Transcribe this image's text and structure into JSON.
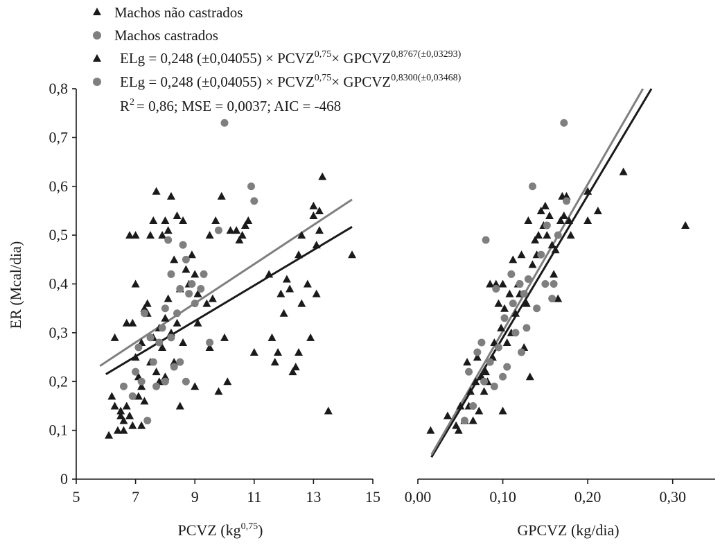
{
  "legend": {
    "entries": [
      {
        "marker": "triangle",
        "color": "#1a1a1a",
        "label": "Machos não castrados"
      },
      {
        "marker": "circle",
        "color": "#7f7f7f",
        "label": "Machos castrados"
      }
    ],
    "equations": [
      {
        "marker": "triangle",
        "color": "#1a1a1a",
        "text": "ELg = 0,248 (±0,04055)  × PCVZ",
        "sup1": "0,75",
        "mid": "× GPCVZ",
        "sup2": "0,8767(±0,03293)"
      },
      {
        "marker": "circle",
        "color": "#7f7f7f",
        "text": "ELg = 0,248 (±0,04055)  × PCVZ",
        "sup1": "0,75",
        "mid": "× GPCVZ",
        "sup2": "0,8300(±0,03468)"
      }
    ],
    "stats": {
      "r_prefix": "R",
      "r_sup": "2",
      "rest": "= 0,86; MSE = 0,0037;  AIC = -468"
    }
  },
  "y_axis": {
    "title": "ER (Mcal/dia)",
    "ticks": [
      "0",
      "0,1",
      "0,2",
      "0,3",
      "0,4",
      "0,5",
      "0,6",
      "0,7",
      "0,8"
    ]
  },
  "chart_data": [
    {
      "type": "scatter",
      "title": "",
      "xlabel": "PCVZ (kg",
      "xlabel_sup": "0,75",
      "xlabel_end": ")",
      "ylabel": "ER (Mcal/dia)",
      "xlim": [
        5,
        15
      ],
      "ylim": [
        0,
        0.8
      ],
      "x_ticks": [
        "5",
        "7",
        "9",
        "11",
        "13",
        "15"
      ],
      "x_tick_values": [
        5,
        7,
        9,
        11,
        13,
        15
      ],
      "series": [
        {
          "name": "Machos não castrados",
          "marker": "triangle",
          "color": "#1a1a1a",
          "points": [
            [
              6.1,
              0.09
            ],
            [
              6.2,
              0.17
            ],
            [
              6.3,
              0.15
            ],
            [
              6.3,
              0.29
            ],
            [
              6.4,
              0.1
            ],
            [
              6.5,
              0.14
            ],
            [
              6.5,
              0.13
            ],
            [
              6.6,
              0.1
            ],
            [
              6.6,
              0.12
            ],
            [
              6.7,
              0.15
            ],
            [
              6.7,
              0.32
            ],
            [
              6.8,
              0.5
            ],
            [
              6.8,
              0.13
            ],
            [
              6.9,
              0.32
            ],
            [
              6.9,
              0.11
            ],
            [
              7.0,
              0.4
            ],
            [
              7.0,
              0.5
            ],
            [
              7.0,
              0.25
            ],
            [
              7.1,
              0.17
            ],
            [
              7.1,
              0.21
            ],
            [
              7.2,
              0.11
            ],
            [
              7.2,
              0.19
            ],
            [
              7.2,
              0.28
            ],
            [
              7.3,
              0.16
            ],
            [
              7.3,
              0.35
            ],
            [
              7.4,
              0.36
            ],
            [
              7.4,
              0.34
            ],
            [
              7.5,
              0.5
            ],
            [
              7.5,
              0.24
            ],
            [
              7.6,
              0.53
            ],
            [
              7.6,
              0.29
            ],
            [
              7.7,
              0.59
            ],
            [
              7.7,
              0.22
            ],
            [
              7.8,
              0.2
            ],
            [
              7.8,
              0.31
            ],
            [
              7.9,
              0.5
            ],
            [
              7.9,
              0.27
            ],
            [
              8.0,
              0.53
            ],
            [
              8.0,
              0.33
            ],
            [
              8.0,
              0.21
            ],
            [
              8.1,
              0.51
            ],
            [
              8.1,
              0.37
            ],
            [
              8.2,
              0.3
            ],
            [
              8.2,
              0.58
            ],
            [
              8.3,
              0.45
            ],
            [
              8.3,
              0.24
            ],
            [
              8.4,
              0.54
            ],
            [
              8.4,
              0.32
            ],
            [
              8.5,
              0.39
            ],
            [
              8.5,
              0.15
            ],
            [
              8.6,
              0.53
            ],
            [
              8.6,
              0.28
            ],
            [
              8.7,
              0.43
            ],
            [
              8.8,
              0.4
            ],
            [
              8.9,
              0.46
            ],
            [
              9.0,
              0.19
            ],
            [
              9.0,
              0.42
            ],
            [
              9.1,
              0.32
            ],
            [
              9.1,
              0.38
            ],
            [
              9.4,
              0.36
            ],
            [
              9.5,
              0.5
            ],
            [
              9.5,
              0.27
            ],
            [
              9.6,
              0.37
            ],
            [
              9.7,
              0.53
            ],
            [
              9.8,
              0.18
            ],
            [
              9.9,
              0.58
            ],
            [
              10.0,
              0.29
            ],
            [
              10.1,
              0.2
            ],
            [
              10.2,
              0.51
            ],
            [
              10.4,
              0.51
            ],
            [
              10.5,
              0.49
            ],
            [
              10.6,
              0.5
            ],
            [
              10.7,
              0.52
            ],
            [
              10.8,
              0.53
            ],
            [
              11.0,
              0.26
            ],
            [
              11.5,
              0.42
            ],
            [
              11.6,
              0.29
            ],
            [
              11.7,
              0.24
            ],
            [
              11.8,
              0.26
            ],
            [
              11.9,
              0.38
            ],
            [
              12.0,
              0.34
            ],
            [
              12.1,
              0.41
            ],
            [
              12.2,
              0.39
            ],
            [
              12.3,
              0.22
            ],
            [
              12.4,
              0.23
            ],
            [
              12.5,
              0.26
            ],
            [
              12.5,
              0.46
            ],
            [
              12.6,
              0.5
            ],
            [
              12.6,
              0.36
            ],
            [
              12.8,
              0.4
            ],
            [
              12.9,
              0.29
            ],
            [
              13.0,
              0.56
            ],
            [
              13.0,
              0.54
            ],
            [
              13.1,
              0.48
            ],
            [
              13.2,
              0.55
            ],
            [
              13.2,
              0.51
            ],
            [
              13.3,
              0.62
            ],
            [
              13.5,
              0.14
            ],
            [
              13.1,
              0.38
            ],
            [
              14.3,
              0.46
            ]
          ]
        },
        {
          "name": "Machos castrados",
          "marker": "circle",
          "color": "#7f7f7f",
          "points": [
            [
              6.6,
              0.19
            ],
            [
              6.9,
              0.17
            ],
            [
              7.0,
              0.22
            ],
            [
              7.1,
              0.27
            ],
            [
              7.2,
              0.2
            ],
            [
              7.3,
              0.34
            ],
            [
              7.4,
              0.12
            ],
            [
              7.5,
              0.29
            ],
            [
              7.6,
              0.24
            ],
            [
              7.7,
              0.19
            ],
            [
              7.8,
              0.28
            ],
            [
              7.9,
              0.31
            ],
            [
              8.0,
              0.35
            ],
            [
              8.0,
              0.2
            ],
            [
              8.1,
              0.49
            ],
            [
              8.2,
              0.42
            ],
            [
              8.2,
              0.29
            ],
            [
              8.3,
              0.23
            ],
            [
              8.4,
              0.34
            ],
            [
              8.5,
              0.24
            ],
            [
              8.5,
              0.39
            ],
            [
              8.6,
              0.48
            ],
            [
              8.7,
              0.45
            ],
            [
              8.7,
              0.2
            ],
            [
              8.8,
              0.38
            ],
            [
              8.9,
              0.4
            ],
            [
              9.0,
              0.36
            ],
            [
              9.2,
              0.39
            ],
            [
              9.3,
              0.42
            ],
            [
              9.5,
              0.28
            ],
            [
              9.8,
              0.51
            ],
            [
              10.0,
              0.73
            ],
            [
              10.9,
              0.6
            ],
            [
              11.0,
              0.57
            ]
          ]
        }
      ],
      "fits": [
        {
          "name": "Machos não castrados",
          "color": "#1a1a1a",
          "points": [
            [
              6.0,
              0.215
            ],
            [
              14.3,
              0.517
            ]
          ]
        },
        {
          "name": "Machos castrados",
          "color": "#7f7f7f",
          "points": [
            [
              5.8,
              0.232
            ],
            [
              14.3,
              0.573
            ]
          ]
        }
      ]
    },
    {
      "type": "scatter",
      "title": "",
      "xlabel": "GPCVZ (kg/dia)",
      "xlabel_sup": "",
      "xlabel_end": "",
      "ylabel": "",
      "xlim": [
        0,
        0.35
      ],
      "ylim": [
        0,
        0.8
      ],
      "x_ticks": [
        "0,00",
        "0,10",
        "0,20",
        "0,30"
      ],
      "x_tick_values": [
        0,
        0.1,
        0.2,
        0.3
      ],
      "series": [
        {
          "name": "Machos não castrados",
          "marker": "triangle",
          "color": "#1a1a1a",
          "points": [
            [
              0.015,
              0.1
            ],
            [
              0.035,
              0.13
            ],
            [
              0.045,
              0.11
            ],
            [
              0.048,
              0.1
            ],
            [
              0.05,
              0.15
            ],
            [
              0.055,
              0.12
            ],
            [
              0.058,
              0.24
            ],
            [
              0.06,
              0.15
            ],
            [
              0.062,
              0.18
            ],
            [
              0.065,
              0.12
            ],
            [
              0.068,
              0.2
            ],
            [
              0.07,
              0.25
            ],
            [
              0.072,
              0.14
            ],
            [
              0.075,
              0.21
            ],
            [
              0.078,
              0.18
            ],
            [
              0.08,
              0.22
            ],
            [
              0.082,
              0.2
            ],
            [
              0.085,
              0.4
            ],
            [
              0.088,
              0.25
            ],
            [
              0.09,
              0.28
            ],
            [
              0.092,
              0.4
            ],
            [
              0.095,
              0.36
            ],
            [
              0.098,
              0.31
            ],
            [
              0.1,
              0.14
            ],
            [
              0.1,
              0.4
            ],
            [
              0.102,
              0.35
            ],
            [
              0.105,
              0.28
            ],
            [
              0.108,
              0.38
            ],
            [
              0.11,
              0.3
            ],
            [
              0.112,
              0.45
            ],
            [
              0.115,
              0.34
            ],
            [
              0.118,
              0.4
            ],
            [
              0.12,
              0.38
            ],
            [
              0.122,
              0.46
            ],
            [
              0.125,
              0.27
            ],
            [
              0.128,
              0.36
            ],
            [
              0.13,
              0.53
            ],
            [
              0.132,
              0.21
            ],
            [
              0.135,
              0.44
            ],
            [
              0.138,
              0.49
            ],
            [
              0.14,
              0.46
            ],
            [
              0.142,
              0.5
            ],
            [
              0.145,
              0.55
            ],
            [
              0.148,
              0.52
            ],
            [
              0.15,
              0.56
            ],
            [
              0.152,
              0.5
            ],
            [
              0.155,
              0.54
            ],
            [
              0.158,
              0.48
            ],
            [
              0.16,
              0.42
            ],
            [
              0.162,
              0.47
            ],
            [
              0.165,
              0.37
            ],
            [
              0.168,
              0.53
            ],
            [
              0.17,
              0.58
            ],
            [
              0.172,
              0.54
            ],
            [
              0.175,
              0.58
            ],
            [
              0.178,
              0.53
            ],
            [
              0.18,
              0.5
            ],
            [
              0.2,
              0.53
            ],
            [
              0.2,
              0.59
            ],
            [
              0.212,
              0.55
            ],
            [
              0.242,
              0.63
            ],
            [
              0.315,
              0.52
            ]
          ]
        },
        {
          "name": "Machos castrados",
          "marker": "circle",
          "color": "#7f7f7f",
          "points": [
            [
              0.055,
              0.12
            ],
            [
              0.06,
              0.22
            ],
            [
              0.065,
              0.15
            ],
            [
              0.07,
              0.26
            ],
            [
              0.075,
              0.28
            ],
            [
              0.078,
              0.2
            ],
            [
              0.08,
              0.49
            ],
            [
              0.085,
              0.24
            ],
            [
              0.09,
              0.19
            ],
            [
              0.092,
              0.39
            ],
            [
              0.095,
              0.27
            ],
            [
              0.1,
              0.21
            ],
            [
              0.102,
              0.33
            ],
            [
              0.105,
              0.23
            ],
            [
              0.11,
              0.42
            ],
            [
              0.112,
              0.36
            ],
            [
              0.115,
              0.3
            ],
            [
              0.12,
              0.4
            ],
            [
              0.122,
              0.26
            ],
            [
              0.125,
              0.38
            ],
            [
              0.128,
              0.31
            ],
            [
              0.13,
              0.41
            ],
            [
              0.135,
              0.6
            ],
            [
              0.14,
              0.35
            ],
            [
              0.145,
              0.46
            ],
            [
              0.15,
              0.4
            ],
            [
              0.152,
              0.52
            ],
            [
              0.158,
              0.37
            ],
            [
              0.16,
              0.4
            ],
            [
              0.165,
              0.5
            ],
            [
              0.172,
              0.73
            ],
            [
              0.175,
              0.57
            ]
          ]
        }
      ],
      "fits": [
        {
          "name": "Machos não castrados",
          "color": "#1a1a1a",
          "points": [
            [
              0.016,
              0.045
            ],
            [
              0.275,
              0.8
            ]
          ]
        },
        {
          "name": "Machos castrados",
          "color": "#7f7f7f",
          "points": [
            [
              0.016,
              0.05
            ],
            [
              0.265,
              0.8
            ]
          ]
        }
      ]
    }
  ]
}
